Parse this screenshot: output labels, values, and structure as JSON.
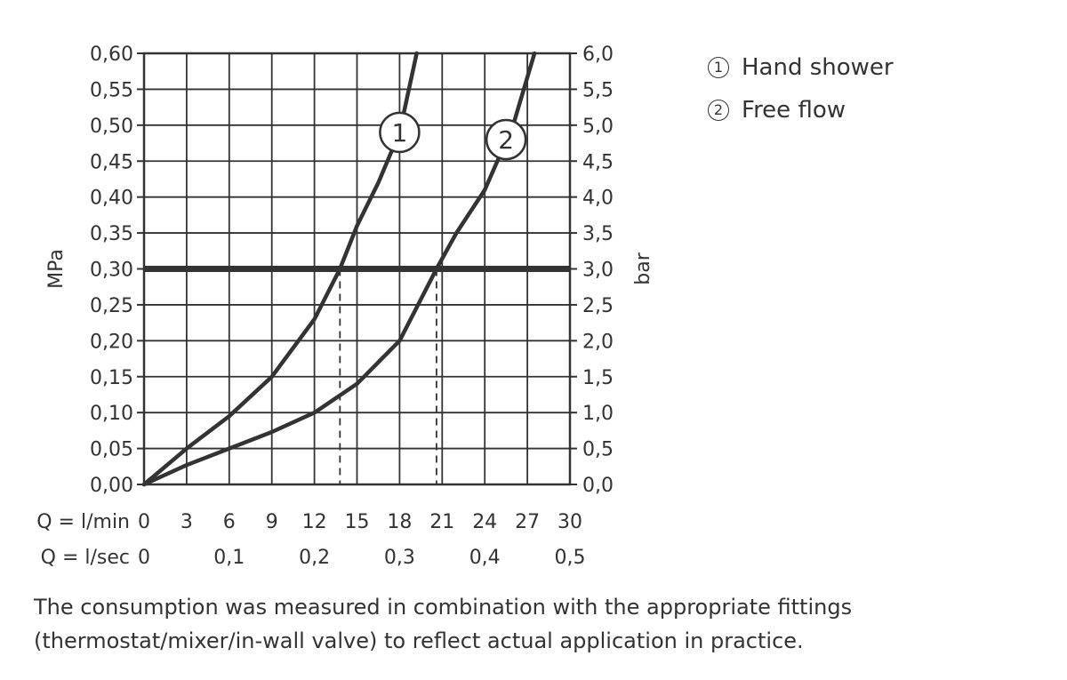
{
  "chart_data": {
    "type": "line",
    "title": "",
    "x_axis": {
      "range": [
        0,
        30
      ],
      "ticks": [
        0,
        3,
        6,
        9,
        12,
        15,
        18,
        21,
        24,
        27,
        30
      ],
      "label_lmin": "Q = l/min",
      "tick_labels_lmin": [
        "0",
        "3",
        "6",
        "9",
        "12",
        "15",
        "18",
        "21",
        "24",
        "27",
        "30"
      ],
      "label_lsec": "Q = l/sec",
      "tick_labels_lsec": [
        "0",
        "0,1",
        "0,2",
        "0,3",
        "0,4",
        "0,5"
      ],
      "ticks_lsec_lmin": [
        0,
        6,
        12,
        18,
        24,
        30
      ]
    },
    "y_axis_left": {
      "label": "MPa",
      "range": [
        0,
        0.6
      ],
      "ticks": [
        0,
        0.05,
        0.1,
        0.15,
        0.2,
        0.25,
        0.3,
        0.35,
        0.4,
        0.45,
        0.5,
        0.55,
        0.6
      ],
      "tick_labels": [
        "0,00",
        "0,05",
        "0,10",
        "0,15",
        "0,20",
        "0,25",
        "0,30",
        "0,35",
        "0,40",
        "0,45",
        "0,50",
        "0,55",
        "0,60"
      ]
    },
    "y_axis_right": {
      "label": "bar",
      "range": [
        0,
        6
      ],
      "tick_labels": [
        "0,0",
        "0,5",
        "1,0",
        "1,5",
        "2,0",
        "2,5",
        "3,0",
        "3,5",
        "4,0",
        "4,5",
        "5,0",
        "5,5",
        "6,0"
      ]
    },
    "grid": true,
    "reference_line": {
      "y": 0.3
    },
    "series": [
      {
        "name": "Hand shower",
        "marker": "1",
        "marker_at": [
          18,
          0.49
        ],
        "x": [
          0,
          3,
          6,
          9,
          12,
          13.8,
          15,
          16.5,
          18,
          19.2
        ],
        "y": [
          0,
          0.05,
          0.095,
          0.15,
          0.23,
          0.3,
          0.36,
          0.42,
          0.49,
          0.6
        ],
        "intersection_x": 13.8
      },
      {
        "name": "Free flow",
        "marker": "2",
        "marker_at": [
          25.5,
          0.48
        ],
        "x": [
          0,
          3,
          6,
          9,
          12,
          15,
          18,
          20.6,
          22,
          24,
          26,
          27.5
        ],
        "y": [
          0,
          0.027,
          0.05,
          0.073,
          0.1,
          0.14,
          0.2,
          0.3,
          0.35,
          0.41,
          0.5,
          0.6
        ],
        "intersection_x": 20.6
      }
    ],
    "legend": {
      "placement": "top-right",
      "items": [
        {
          "num": "1",
          "label": "Hand shower"
        },
        {
          "num": "2",
          "label": "Free flow"
        }
      ]
    }
  },
  "note": "The consumption was measured in combination with the appropriate fittings (thermostat/mixer/in-wall valve) to reflect actual application in practice."
}
